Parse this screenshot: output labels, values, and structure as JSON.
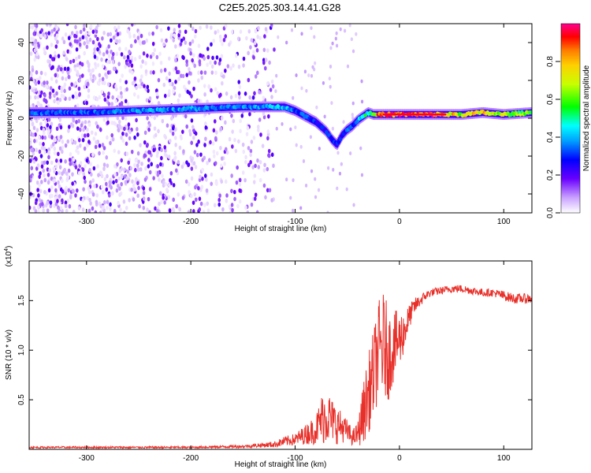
{
  "title": "C2E5.2025.303.14.41.G28",
  "chart_data": [
    {
      "type": "heatmap",
      "name": "spectrogram",
      "xlabel": "Height of straight line (km)",
      "ylabel": "Frequency (Hz)",
      "xlim": [
        -355,
        127
      ],
      "ylim": [
        -50,
        50
      ],
      "xticks": [
        -300,
        -200,
        -100,
        0,
        100
      ],
      "yticks": [
        -40,
        -20,
        0,
        20,
        40
      ],
      "colorbar": {
        "label": "Normalized spectral amplitude",
        "range": [
          0,
          1
        ],
        "ticks": [
          "0.0",
          "0.2",
          "0.4",
          "0.6",
          "0.8"
        ]
      },
      "ridge": {
        "description_x": [
          -355,
          -300,
          -250,
          -200,
          -150,
          -130,
          -110,
          -100,
          -90,
          -80,
          -70,
          -65,
          -60,
          -55,
          -50,
          -45,
          -40,
          -35,
          -30,
          -25,
          -20,
          -10,
          0,
          20,
          40,
          60,
          80,
          100,
          127
        ],
        "freq": [
          3,
          3,
          4,
          5,
          6,
          6,
          6,
          4,
          1,
          -2,
          -7,
          -11,
          -14,
          -9,
          -6,
          -4,
          -1,
          1,
          3,
          2,
          2,
          2,
          2,
          2,
          2,
          2,
          3,
          2,
          3
        ],
        "amplitude": [
          0.35,
          0.35,
          0.4,
          0.4,
          0.38,
          0.42,
          0.45,
          0.35,
          0.35,
          0.3,
          0.3,
          0.35,
          0.35,
          0.3,
          0.35,
          0.35,
          0.4,
          0.5,
          0.55,
          0.75,
          0.88,
          0.9,
          0.92,
          0.95,
          0.9,
          0.7,
          0.85,
          0.7,
          0.6
        ]
      }
    },
    {
      "type": "line",
      "name": "snr",
      "xlabel": "Height of straight line (km)",
      "ylabel": "SNR (10 * v/v)",
      "y_multiplier": "(x10^4)",
      "y_multiplier_base": "(x10",
      "y_multiplier_exp": "4",
      "y_multiplier_close": ")",
      "xlim": [
        -355,
        127
      ],
      "ylim": [
        0,
        1.9
      ],
      "xticks": [
        -300,
        -200,
        -100,
        0,
        100
      ],
      "yticks": [
        0.5,
        1.0,
        1.5
      ],
      "ytick_labels": [
        "0.5",
        "1.0",
        "1.5"
      ],
      "color": "#e8302a",
      "series": [
        {
          "name": "SNR",
          "x": [
            -355,
            -300,
            -250,
            -200,
            -150,
            -120,
            -110,
            -100,
            -90,
            -80,
            -75,
            -70,
            -65,
            -60,
            -55,
            -50,
            -45,
            -40,
            -35,
            -30,
            -25,
            -20,
            -15,
            -10,
            -5,
            0,
            5,
            10,
            15,
            20,
            25,
            30,
            40,
            50,
            60,
            70,
            80,
            90,
            100,
            110,
            127
          ],
          "y": [
            0.02,
            0.02,
            0.02,
            0.02,
            0.03,
            0.05,
            0.08,
            0.1,
            0.15,
            0.2,
            0.3,
            0.35,
            0.3,
            0.25,
            0.22,
            0.18,
            0.12,
            0.15,
            0.35,
            0.55,
            0.75,
            1.0,
            1.05,
            0.95,
            1.05,
            1.1,
            1.2,
            1.35,
            1.45,
            1.5,
            1.55,
            1.58,
            1.6,
            1.62,
            1.62,
            1.6,
            1.58,
            1.58,
            1.55,
            1.52,
            1.52
          ],
          "noise": [
            0.01,
            0.01,
            0.01,
            0.01,
            0.015,
            0.03,
            0.05,
            0.06,
            0.1,
            0.15,
            0.25,
            0.3,
            0.22,
            0.2,
            0.15,
            0.12,
            0.08,
            0.12,
            0.3,
            0.4,
            0.45,
            0.5,
            0.55,
            0.45,
            0.35,
            0.3,
            0.2,
            0.12,
            0.08,
            0.06,
            0.05,
            0.04,
            0.04,
            0.04,
            0.04,
            0.04,
            0.04,
            0.04,
            0.05,
            0.05,
            0.05
          ]
        }
      ]
    }
  ]
}
